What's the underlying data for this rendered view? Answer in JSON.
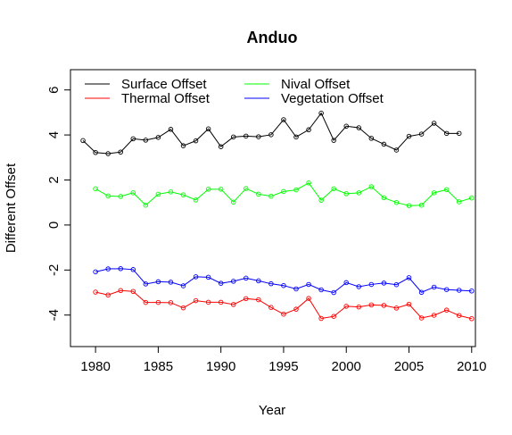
{
  "chart_data": {
    "type": "line",
    "title": "Anduo",
    "xlabel": "Year",
    "ylabel": "Different Offset",
    "xlim": [
      1978,
      2010.3
    ],
    "ylim": [
      -5.4,
      6.9
    ],
    "x_ticks": [
      1980,
      1985,
      1990,
      1995,
      2000,
      2005,
      2010
    ],
    "y_ticks": [
      -4,
      -2,
      0,
      2,
      4,
      6
    ],
    "grid": false,
    "legend_position": "top-left",
    "series": [
      {
        "name": "Surface Offset",
        "color": "#000000",
        "x": [
          1979,
          1980,
          1981,
          1982,
          1983,
          1984,
          1985,
          1986,
          1987,
          1988,
          1989,
          1990,
          1991,
          1992,
          1993,
          1994,
          1995,
          1996,
          1997,
          1998,
          1999,
          2000,
          2001,
          2002,
          2003,
          2004,
          2005,
          2006,
          2007,
          2008,
          2009
        ],
        "values": [
          3.75,
          3.22,
          3.17,
          3.24,
          3.83,
          3.77,
          3.89,
          4.25,
          3.52,
          3.74,
          4.27,
          3.48,
          3.91,
          3.95,
          3.92,
          4.01,
          4.68,
          3.91,
          4.23,
          4.97,
          3.76,
          4.39,
          4.32,
          3.85,
          3.59,
          3.33,
          3.94,
          4.04,
          4.52,
          4.07,
          4.07
        ]
      },
      {
        "name": "Thermal Offset",
        "color": "#ff0000",
        "x": [
          1980,
          1981,
          1982,
          1983,
          1984,
          1985,
          1986,
          1987,
          1988,
          1989,
          1990,
          1991,
          1992,
          1993,
          1994,
          1995,
          1996,
          1997,
          1998,
          1999,
          2000,
          2001,
          2002,
          2003,
          2004,
          2005,
          2006,
          2007,
          2008,
          2009,
          2010
        ],
        "values": [
          -2.98,
          -3.11,
          -2.91,
          -2.95,
          -3.44,
          -3.44,
          -3.45,
          -3.68,
          -3.36,
          -3.43,
          -3.43,
          -3.53,
          -3.27,
          -3.32,
          -3.66,
          -3.96,
          -3.74,
          -3.26,
          -4.15,
          -4.06,
          -3.61,
          -3.64,
          -3.55,
          -3.57,
          -3.69,
          -3.52,
          -4.13,
          -4.01,
          -3.78,
          -4.02,
          -4.16
        ]
      },
      {
        "name": "Nival Offset",
        "color": "#00ff00",
        "x": [
          1980,
          1981,
          1982,
          1983,
          1984,
          1985,
          1986,
          1987,
          1988,
          1989,
          1990,
          1991,
          1992,
          1993,
          1994,
          1995,
          1996,
          1997,
          1998,
          1999,
          2000,
          2001,
          2002,
          2003,
          2004,
          2005,
          2006,
          2007,
          2008,
          2009,
          2010
        ],
        "values": [
          1.61,
          1.29,
          1.27,
          1.43,
          0.88,
          1.37,
          1.47,
          1.34,
          1.11,
          1.59,
          1.59,
          1.02,
          1.62,
          1.37,
          1.28,
          1.49,
          1.56,
          1.87,
          1.1,
          1.61,
          1.39,
          1.43,
          1.7,
          1.21,
          1.0,
          0.86,
          0.88,
          1.43,
          1.57,
          1.03,
          1.2
        ]
      },
      {
        "name": "Vegetation Offset",
        "color": "#0000ff",
        "x": [
          1980,
          1981,
          1982,
          1983,
          1984,
          1985,
          1986,
          1987,
          1988,
          1989,
          1990,
          1991,
          1992,
          1993,
          1994,
          1995,
          1996,
          1997,
          1998,
          1999,
          2000,
          2001,
          2002,
          2003,
          2004,
          2005,
          2006,
          2007,
          2008,
          2009,
          2010
        ],
        "values": [
          -2.08,
          -1.95,
          -1.94,
          -1.98,
          -2.62,
          -2.52,
          -2.54,
          -2.7,
          -2.3,
          -2.32,
          -2.59,
          -2.5,
          -2.36,
          -2.48,
          -2.61,
          -2.69,
          -2.84,
          -2.64,
          -2.88,
          -3.0,
          -2.56,
          -2.74,
          -2.64,
          -2.58,
          -2.65,
          -2.34,
          -2.99,
          -2.76,
          -2.87,
          -2.9,
          -2.93
        ]
      }
    ]
  }
}
